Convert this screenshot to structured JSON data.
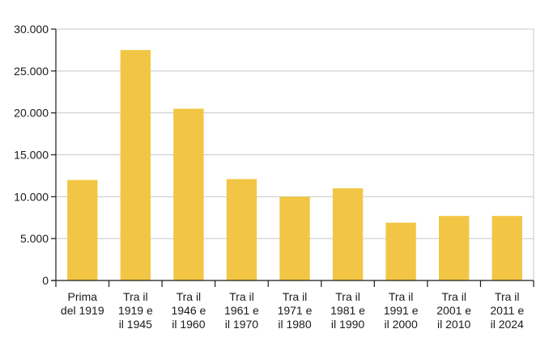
{
  "chart_data": {
    "type": "bar",
    "categories": [
      [
        "Prima",
        "del 1919"
      ],
      [
        "Tra il",
        "1919 e",
        "il 1945"
      ],
      [
        "Tra il",
        "1946 e",
        "il 1960"
      ],
      [
        "Tra il",
        "1961 e",
        "il 1970"
      ],
      [
        "Tra il",
        "1971 e",
        "il 1980"
      ],
      [
        "Tra il",
        "1981 e",
        "il 1990"
      ],
      [
        "Tra il",
        "1991 e",
        "il 2000"
      ],
      [
        "Tra il",
        "2001 e",
        "il 2010"
      ],
      [
        "Tra il",
        "2011 e",
        "il 2024"
      ]
    ],
    "values": [
      12000,
      27500,
      20500,
      12100,
      10000,
      11000,
      6900,
      7700,
      7700
    ],
    "ylim": [
      0,
      30000
    ],
    "yticks": [
      0,
      5000,
      10000,
      15000,
      20000,
      25000,
      30000
    ],
    "ytick_labels": [
      "0",
      "5.000",
      "10.000",
      "15.000",
      "20.000",
      "25.000",
      "30.000"
    ],
    "title": "",
    "xlabel": "",
    "ylabel": "",
    "grid": true,
    "colors": {
      "bar": "#F2C644",
      "grid": "#c8c8c8",
      "axis": "#1a1a1a",
      "frame": "#c8c8c8"
    }
  }
}
